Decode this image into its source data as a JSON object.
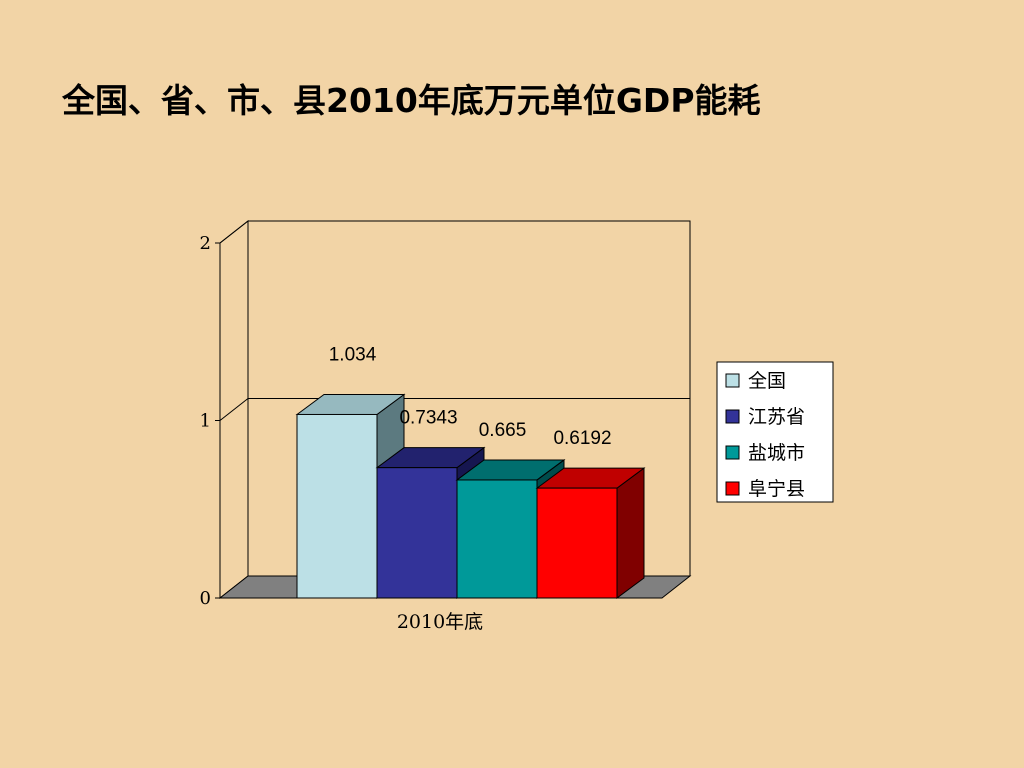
{
  "slide": {
    "title": "全国、省、市、县2010年底万元单位GDP能耗"
  },
  "chart_data": {
    "type": "bar",
    "style": "3d-clustered",
    "title": "",
    "categories": [
      "2010年底"
    ],
    "series": [
      {
        "name": "全国",
        "values": [
          1.034
        ],
        "label": "1.034",
        "color": "#BCE0E6",
        "top_color": "#96B9BF",
        "side_color": "#5C7A80"
      },
      {
        "name": "江苏省",
        "values": [
          0.7343
        ],
        "label": "0.7343",
        "color": "#333399",
        "top_color": "#22226E",
        "side_color": "#161650"
      },
      {
        "name": "盐城市",
        "values": [
          0.665
        ],
        "label": "0.665",
        "color": "#009999",
        "top_color": "#006E6E",
        "side_color": "#004C4C"
      },
      {
        "name": "阜宁县",
        "values": [
          0.6192
        ],
        "label": "0.6192",
        "color": "#FF0000",
        "top_color": "#C00000",
        "side_color": "#800000"
      }
    ],
    "y_ticks": [
      "0",
      "1",
      "2"
    ],
    "ylim": [
      0,
      2
    ],
    "xlabel": "",
    "ylabel": "",
    "grid": true,
    "legend_position": "right"
  }
}
